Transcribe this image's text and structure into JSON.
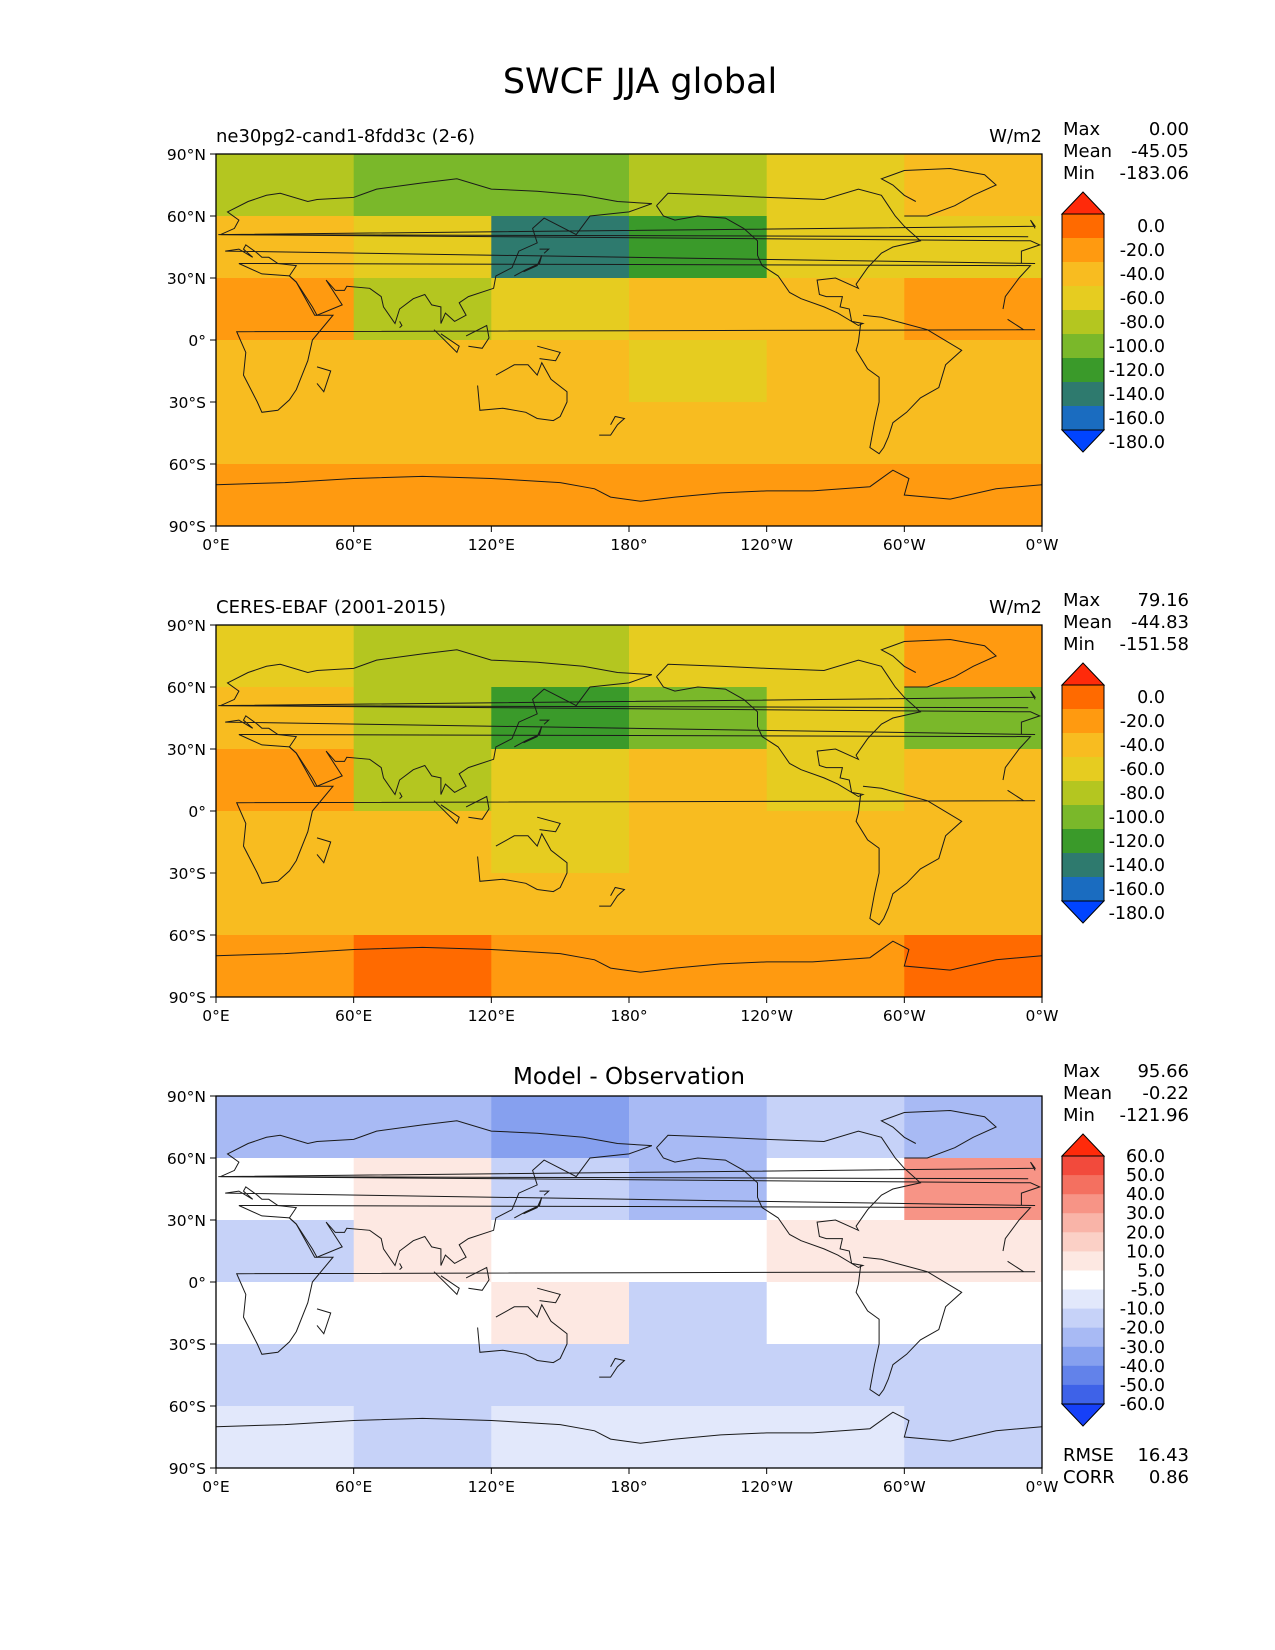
{
  "figure": {
    "title": "SWCF JJA global"
  },
  "lat_ticks": [
    "90°N",
    "60°N",
    "30°N",
    "0°",
    "30°S",
    "60°S",
    "90°S"
  ],
  "lon_ticks": [
    "0°E",
    "60°E",
    "120°E",
    "180°",
    "120°W",
    "60°W",
    "0°W"
  ],
  "panels": [
    {
      "id": "model",
      "left_title": "ne30pg2-cand1-8fdd3c (2-6)",
      "center_title": "",
      "units": "W/m2",
      "stats": [
        {
          "label": "Max",
          "value": "0.00"
        },
        {
          "label": "Mean",
          "value": "-45.05"
        },
        {
          "label": "Min",
          "value": "-183.06"
        }
      ],
      "colorbar": {
        "labels": [
          "0.0",
          "-20.0",
          "-40.0",
          "-60.0",
          "-80.0",
          "-100.0",
          "-120.0",
          "-140.0",
          "-160.0",
          "-180.0"
        ],
        "colors": [
          "#ff2a0a",
          "#ff6a00",
          "#ff9a10",
          "#f8bc20",
          "#e6cc20",
          "#b4c620",
          "#7ab82a",
          "#3a9a2a",
          "#2e7a6e",
          "#1a6cc0",
          "#0044ff"
        ]
      }
    },
    {
      "id": "obs",
      "left_title": "CERES-EBAF (2001-2015)",
      "center_title": "",
      "units": "W/m2",
      "stats": [
        {
          "label": "Max",
          "value": "79.16"
        },
        {
          "label": "Mean",
          "value": "-44.83"
        },
        {
          "label": "Min",
          "value": "-151.58"
        }
      ],
      "colorbar": {
        "labels": [
          "0.0",
          "-20.0",
          "-40.0",
          "-60.0",
          "-80.0",
          "-100.0",
          "-120.0",
          "-140.0",
          "-160.0",
          "-180.0"
        ],
        "colors": [
          "#ff2a0a",
          "#ff6a00",
          "#ff9a10",
          "#f8bc20",
          "#e6cc20",
          "#b4c620",
          "#7ab82a",
          "#3a9a2a",
          "#2e7a6e",
          "#1a6cc0",
          "#0044ff"
        ]
      }
    },
    {
      "id": "diff",
      "left_title": "",
      "center_title": "Model - Observation",
      "units": "",
      "stats": [
        {
          "label": "Max",
          "value": "95.66"
        },
        {
          "label": "Mean",
          "value": "-0.22"
        },
        {
          "label": "Min",
          "value": "-121.96"
        }
      ],
      "extra_stats": [
        {
          "label": "RMSE",
          "value": "16.43"
        },
        {
          "label": "CORR",
          "value": "0.86"
        }
      ],
      "colorbar": {
        "labels": [
          "60.0",
          "50.0",
          "40.0",
          "30.0",
          "20.0",
          "10.0",
          "5.0",
          "-5.0",
          "-10.0",
          "-20.0",
          "-30.0",
          "-40.0",
          "-50.0",
          "-60.0"
        ],
        "colors": [
          "#ff2a0a",
          "#f24a3c",
          "#f47060",
          "#f79486",
          "#f9b4a8",
          "#fbd0c6",
          "#fde8e2",
          "#ffffff",
          "#e2e8fb",
          "#c6d2f8",
          "#a8baf4",
          "#86a0ef",
          "#6282ea",
          "#3e62e8",
          "#1640f8"
        ]
      }
    }
  ],
  "chart_data": {
    "type": "heatmap",
    "title": "SWCF JJA global",
    "panels": [
      {
        "name": "ne30pg2-cand1-8fdd3c (2-6)",
        "units": "W/m2",
        "lat_range": [
          -90,
          90
        ],
        "lon_range": [
          0,
          360
        ],
        "lat": [
          75,
          45,
          15,
          -15,
          -45,
          -75
        ],
        "lon": [
          30,
          90,
          150,
          210,
          270,
          330
        ],
        "values": [
          [
            -90,
            -100,
            -110,
            -90,
            -60,
            -40
          ],
          [
            -40,
            -70,
            -140,
            -120,
            -60,
            -70
          ],
          [
            -30,
            -80,
            -60,
            -40,
            -50,
            -30
          ],
          [
            -40,
            -50,
            -50,
            -60,
            -40,
            -40
          ],
          [
            -50,
            -50,
            -50,
            -50,
            -50,
            -50
          ],
          [
            -25,
            -25,
            -25,
            -25,
            -25,
            -25
          ]
        ],
        "stats": {
          "max": 0.0,
          "mean": -45.05,
          "min": -183.06
        }
      },
      {
        "name": "CERES-EBAF (2001-2015)",
        "units": "W/m2",
        "lat_range": [
          -90,
          90
        ],
        "lon_range": [
          0,
          360
        ],
        "lat": [
          75,
          45,
          15,
          -15,
          -45,
          -75
        ],
        "lon": [
          30,
          90,
          150,
          210,
          270,
          330
        ],
        "values": [
          [
            -70,
            -80,
            -80,
            -70,
            -60,
            -20
          ],
          [
            -40,
            -80,
            -130,
            -100,
            -60,
            -110
          ],
          [
            -20,
            -90,
            -60,
            -40,
            -60,
            -40
          ],
          [
            -40,
            -50,
            -60,
            -50,
            -40,
            -40
          ],
          [
            -40,
            -40,
            -40,
            -40,
            -40,
            -40
          ],
          [
            -20,
            -10,
            -20,
            -20,
            -20,
            -10
          ]
        ],
        "stats": {
          "max": 79.16,
          "mean": -44.83,
          "min": -151.58
        }
      },
      {
        "name": "Model - Observation",
        "units": "",
        "lat_range": [
          -90,
          90
        ],
        "lon_range": [
          0,
          360
        ],
        "lat": [
          75,
          45,
          15,
          -15,
          -45,
          -75
        ],
        "lon": [
          30,
          90,
          150,
          210,
          270,
          330
        ],
        "values": [
          [
            -20,
            -20,
            -30,
            -20,
            -10,
            -20
          ],
          [
            0,
            10,
            -10,
            -20,
            0,
            40
          ],
          [
            -10,
            10,
            0,
            0,
            10,
            10
          ],
          [
            0,
            0,
            10,
            -10,
            0,
            0
          ],
          [
            -10,
            -10,
            -10,
            -10,
            -10,
            -10
          ],
          [
            -5,
            -15,
            -5,
            -5,
            -5,
            -15
          ]
        ],
        "stats": {
          "max": 95.66,
          "mean": -0.22,
          "min": -121.96,
          "rmse": 16.43,
          "corr": 0.86
        }
      }
    ],
    "xlabel": "",
    "ylabel": "",
    "grid": false
  }
}
